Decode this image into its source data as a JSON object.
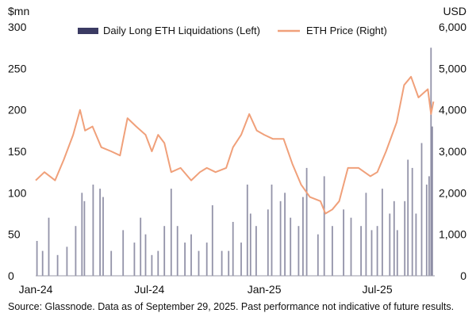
{
  "chart_data": {
    "type": "bar+line",
    "left_unit": "$mn",
    "right_unit": "USD",
    "legend": {
      "bars": "Daily Long ETH Liquidations (Left)",
      "line": "ETH Price (Right)"
    },
    "ylim_left": [
      0,
      300
    ],
    "ylim_right": [
      0,
      6000
    ],
    "left_ticks": [
      "0",
      "50",
      "100",
      "150",
      "200",
      "250",
      "300"
    ],
    "right_ticks": [
      "0",
      "1,000",
      "2,000",
      "3,000",
      "4,000",
      "5,000",
      "6,000"
    ],
    "x_ticks": [
      "Jan-24",
      "Jul-24",
      "Jan-25",
      "Jul-25"
    ],
    "colors": {
      "bars": "#3b3b63",
      "line": "#f0a07a"
    },
    "eth_price": {
      "dates": [
        "2024-01-01",
        "2024-01-15",
        "2024-02-01",
        "2024-02-15",
        "2024-03-01",
        "2024-03-12",
        "2024-03-20",
        "2024-04-01",
        "2024-04-15",
        "2024-05-01",
        "2024-05-15",
        "2024-05-27",
        "2024-06-10",
        "2024-06-25",
        "2024-07-05",
        "2024-07-15",
        "2024-07-25",
        "2024-08-05",
        "2024-08-20",
        "2024-09-06",
        "2024-09-20",
        "2024-10-01",
        "2024-10-15",
        "2024-11-01",
        "2024-11-12",
        "2024-11-25",
        "2024-12-08",
        "2024-12-20",
        "2025-01-01",
        "2025-01-15",
        "2025-02-01",
        "2025-02-15",
        "2025-03-01",
        "2025-03-15",
        "2025-04-01",
        "2025-04-09",
        "2025-04-20",
        "2025-05-01",
        "2025-05-15",
        "2025-06-01",
        "2025-06-20",
        "2025-07-01",
        "2025-07-15",
        "2025-08-01",
        "2025-08-13",
        "2025-08-24",
        "2025-09-05",
        "2025-09-20",
        "2025-09-25",
        "2025-09-29"
      ],
      "values": [
        2300,
        2500,
        2300,
        2800,
        3400,
        4000,
        3500,
        3600,
        3100,
        3000,
        2900,
        3800,
        3600,
        3400,
        3000,
        3400,
        3200,
        2500,
        2600,
        2300,
        2500,
        2600,
        2500,
        2600,
        3100,
        3400,
        3900,
        3500,
        3400,
        3300,
        3300,
        2700,
        2200,
        1900,
        1800,
        1500,
        1600,
        1800,
        2600,
        2600,
        2400,
        2500,
        3000,
        3700,
        4600,
        4800,
        4300,
        4500,
        3900,
        4200
      ]
    },
    "liquidations": {
      "dates": [
        "2024-01-03",
        "2024-01-12",
        "2024-01-22",
        "2024-02-05",
        "2024-02-20",
        "2024-03-05",
        "2024-03-15",
        "2024-03-19",
        "2024-04-02",
        "2024-04-13",
        "2024-04-18",
        "2024-05-01",
        "2024-05-20",
        "2024-06-07",
        "2024-06-17",
        "2024-06-25",
        "2024-07-05",
        "2024-07-15",
        "2024-07-25",
        "2024-08-05",
        "2024-08-15",
        "2024-08-27",
        "2024-09-06",
        "2024-09-18",
        "2024-10-01",
        "2024-10-10",
        "2024-10-25",
        "2024-11-05",
        "2024-11-12",
        "2024-11-25",
        "2024-12-05",
        "2024-12-10",
        "2024-12-19",
        "2025-01-07",
        "2025-01-13",
        "2025-01-27",
        "2025-02-03",
        "2025-02-12",
        "2025-02-25",
        "2025-03-04",
        "2025-03-10",
        "2025-03-28",
        "2025-04-07",
        "2025-04-20",
        "2025-05-08",
        "2025-05-20",
        "2025-06-05",
        "2025-06-13",
        "2025-06-22",
        "2025-07-01",
        "2025-07-09",
        "2025-07-21",
        "2025-07-28",
        "2025-08-02",
        "2025-08-14",
        "2025-08-19",
        "2025-08-26",
        "2025-09-01",
        "2025-09-10",
        "2025-09-18",
        "2025-09-22",
        "2025-09-25",
        "2025-09-27"
      ],
      "values": [
        42,
        30,
        70,
        25,
        35,
        60,
        100,
        90,
        110,
        105,
        95,
        30,
        55,
        40,
        70,
        50,
        25,
        30,
        60,
        105,
        60,
        40,
        50,
        30,
        40,
        85,
        30,
        30,
        65,
        40,
        110,
        75,
        60,
        80,
        110,
        90,
        100,
        70,
        60,
        95,
        130,
        50,
        120,
        60,
        80,
        70,
        60,
        100,
        55,
        60,
        105,
        75,
        90,
        55,
        90,
        140,
        130,
        75,
        160,
        110,
        120,
        275,
        180
      ]
    }
  },
  "source_text": "Source: Glassnode. Data as of September 29, 2025. Past performance not indicative of future results."
}
